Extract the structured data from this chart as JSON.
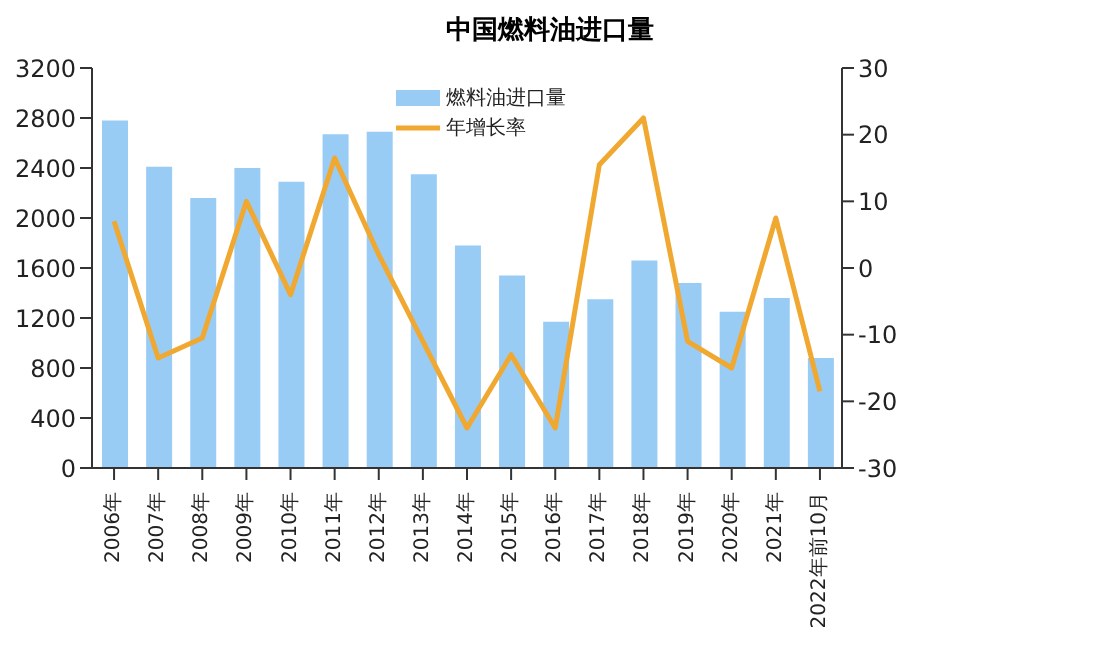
{
  "chart_data": {
    "type": "bar",
    "title": "中国燃料油进口量",
    "categories": [
      "2006年",
      "2007年",
      "2008年",
      "2009年",
      "2010年",
      "2011年",
      "2012年",
      "2013年",
      "2014年",
      "2015年",
      "2016年",
      "2017年",
      "2018年",
      "2019年",
      "2020年",
      "2021年",
      "2022年前10月"
    ],
    "series": [
      {
        "name": "燃料油进口量",
        "color": "#99ccf5",
        "values": [
          2780,
          2410,
          2160,
          2400,
          2290,
          2670,
          2690,
          2350,
          1780,
          1540,
          1170,
          1350,
          1660,
          1480,
          1250,
          1360,
          880
        ]
      },
      {
        "name": "年增长率",
        "type": "line",
        "axis": "y2",
        "color": "#f0a830",
        "values": [
          7,
          -13.5,
          -10.5,
          10,
          -4,
          16.5,
          2,
          -11,
          -24,
          -13,
          -24,
          15.5,
          22.5,
          -11,
          -15,
          7.5,
          -18.5
        ]
      }
    ],
    "ylim": [
      0,
      3200
    ],
    "yticks": [
      0,
      400,
      800,
      1200,
      1600,
      2000,
      2400,
      2800,
      3200
    ],
    "y2lim": [
      -30,
      30
    ],
    "y2ticks": [
      -30,
      -20,
      -10,
      0,
      10,
      20,
      30
    ],
    "grid": false,
    "legend": "top right",
    "marker": "none",
    "line_style": "solid"
  }
}
